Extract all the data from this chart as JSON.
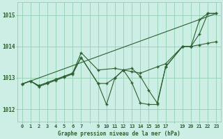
{
  "title": "Graphe pression niveau de la mer (hPa)",
  "bg_color": "#cceee4",
  "grid_color": "#88c8aa",
  "line_color": "#2d6030",
  "ylim": [
    1011.6,
    1015.4
  ],
  "xlim": [
    -0.5,
    23.5
  ],
  "yticks": [
    1012,
    1013,
    1014,
    1015
  ],
  "xtick_labels": [
    "0",
    "1",
    "2",
    "3",
    "4",
    "5",
    "6",
    "7",
    "",
    "9",
    "10",
    "11",
    "12",
    "13",
    "14",
    "15",
    "16",
    "17",
    "",
    "19",
    "20",
    "21",
    "22",
    "23"
  ],
  "series": [
    {
      "x": [
        0,
        23
      ],
      "y": [
        1012.8,
        1015.05
      ],
      "markers": false
    },
    {
      "x": [
        0,
        1,
        2,
        3,
        4,
        5,
        6,
        7,
        9,
        11,
        12,
        13,
        14,
        16,
        17,
        19,
        20,
        21,
        22,
        23
      ],
      "y": [
        1012.8,
        1012.9,
        1012.75,
        1012.85,
        1012.95,
        1013.05,
        1013.15,
        1013.8,
        1013.25,
        1013.3,
        1013.25,
        1013.2,
        1013.15,
        1013.35,
        1013.45,
        1014.0,
        1014.0,
        1014.05,
        1014.1,
        1014.15
      ],
      "markers": true
    },
    {
      "x": [
        0,
        1,
        2,
        3,
        4,
        5,
        6,
        7,
        9,
        10,
        11,
        12,
        13,
        14,
        15,
        16,
        17,
        19,
        20,
        21,
        22,
        23
      ],
      "y": [
        1012.8,
        1012.9,
        1012.75,
        1012.85,
        1012.95,
        1013.05,
        1013.15,
        1013.65,
        1012.82,
        1012.82,
        1013.0,
        1013.25,
        1013.3,
        1013.05,
        1012.6,
        1012.2,
        1013.35,
        1014.0,
        1014.0,
        1014.4,
        1015.05,
        1015.05
      ],
      "markers": true
    },
    {
      "x": [
        0,
        1,
        2,
        3,
        4,
        5,
        6,
        7,
        9,
        10,
        11,
        12,
        13,
        14,
        15,
        16,
        17,
        19,
        20,
        21,
        22,
        23
      ],
      "y": [
        1012.8,
        1012.9,
        1012.72,
        1012.82,
        1012.92,
        1013.02,
        1013.12,
        1013.65,
        1012.82,
        1012.15,
        1013.0,
        1013.25,
        1012.85,
        1012.2,
        1012.15,
        1012.15,
        1013.35,
        1014.0,
        1014.0,
        1014.85,
        1015.05,
        1015.05
      ],
      "markers": true
    }
  ]
}
